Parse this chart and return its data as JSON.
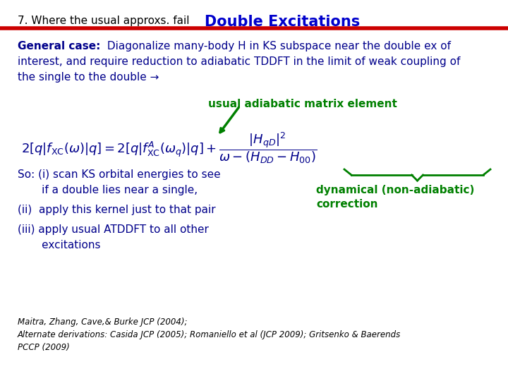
{
  "title_left": "7. Where the usual approxs. fail",
  "title_right": "Double Excitations",
  "title_left_color": "#000000",
  "title_right_color": "#0000CC",
  "red_line_color": "#CC0000",
  "background_color": "#ffffff",
  "usual_label": "usual adiabatic matrix element",
  "usual_label_color": "#008000",
  "dynamical_label": "dynamical (non-adiabatic)\ncorrection",
  "dynamical_label_color": "#008000",
  "equation_color": "#00008B",
  "body_text_color": "#00008B",
  "ref_color": "#000000",
  "brace_color": "#008000",
  "arrow_color": "#008000"
}
